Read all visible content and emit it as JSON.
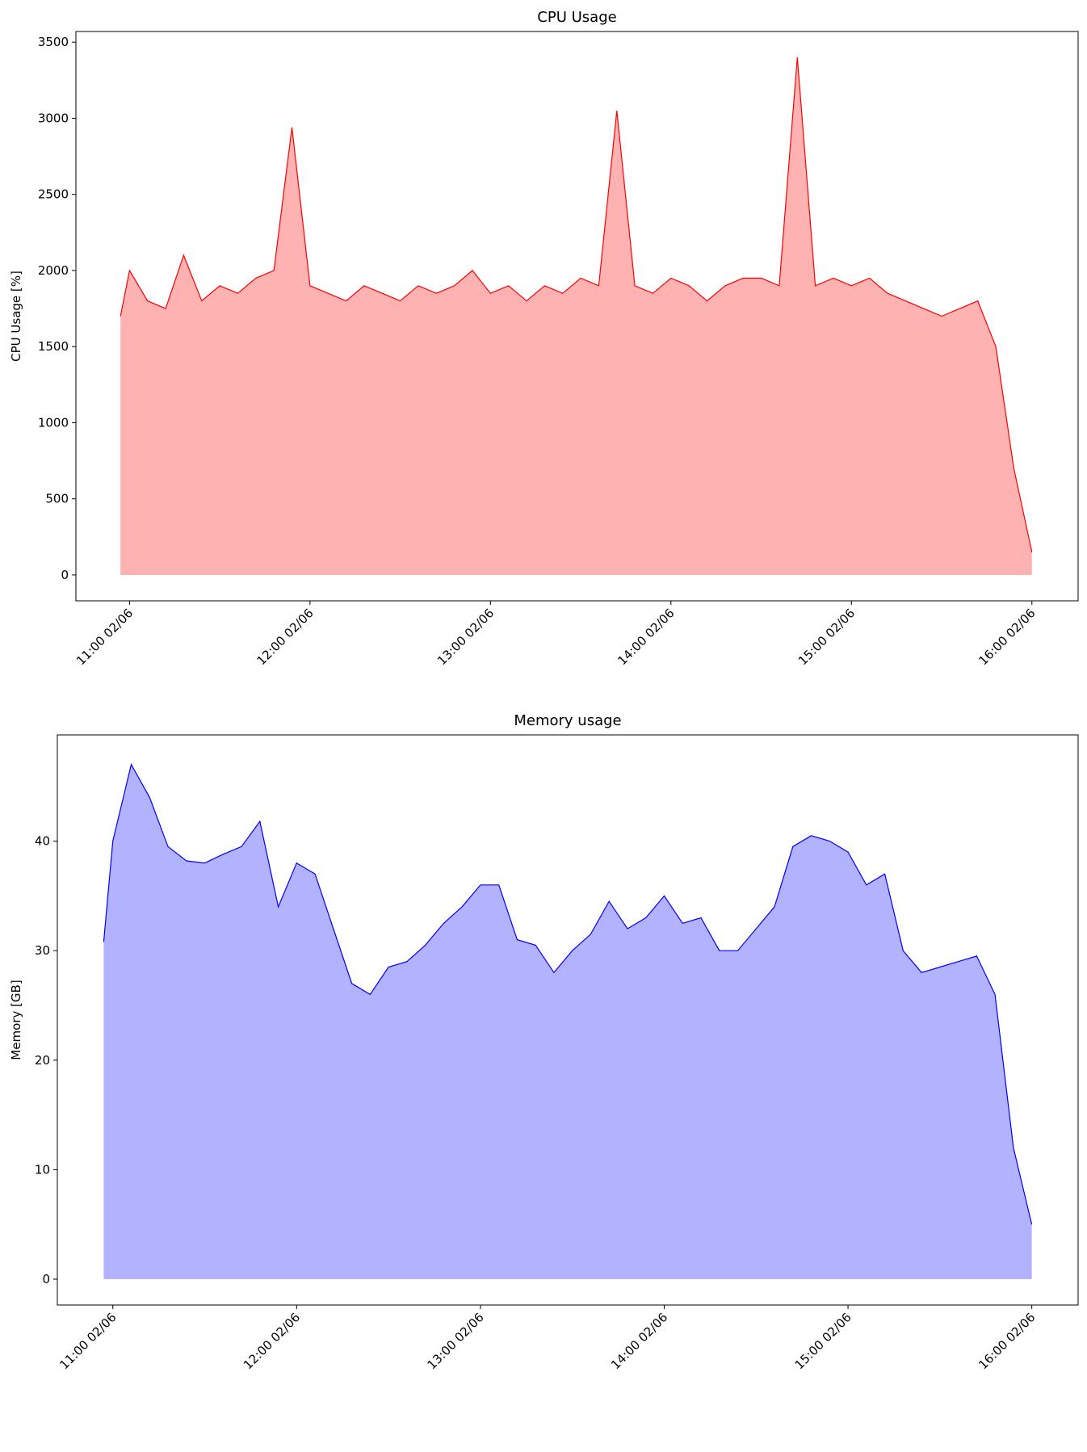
{
  "chart_data": [
    {
      "type": "area",
      "title": "CPU Usage",
      "y_label": "CPU Usage [%]",
      "color": "red",
      "x": [
        10.95,
        11.0,
        11.1,
        11.2,
        11.3,
        11.4,
        11.5,
        11.6,
        11.7,
        11.8,
        11.9,
        12.0,
        12.1,
        12.2,
        12.3,
        12.4,
        12.5,
        12.6,
        12.7,
        12.8,
        12.9,
        13.0,
        13.1,
        13.2,
        13.3,
        13.4,
        13.5,
        13.6,
        13.7,
        13.8,
        13.9,
        14.0,
        14.1,
        14.2,
        14.3,
        14.4,
        14.5,
        14.6,
        14.7,
        14.8,
        14.9,
        15.0,
        15.1,
        15.2,
        15.3,
        15.4,
        15.5,
        15.6,
        15.7,
        15.8,
        15.9,
        16.0
      ],
      "values": [
        1700,
        2000,
        1800,
        1750,
        2100,
        1800,
        1900,
        1850,
        1950,
        2000,
        2940,
        1900,
        1850,
        1800,
        1900,
        1850,
        1800,
        1900,
        1850,
        1900,
        2000,
        1850,
        1900,
        1800,
        1900,
        1850,
        1950,
        1900,
        3050,
        1900,
        1850,
        1950,
        1900,
        1800,
        1900,
        1950,
        1950,
        1900,
        3400,
        1900,
        1950,
        1900,
        1950,
        1850,
        1800,
        1750,
        1700,
        1750,
        1800,
        1500,
        700,
        150
      ],
      "xlim": [
        10.703,
        16.256
      ],
      "ylim": [
        -170,
        3570
      ],
      "yticks": [
        0,
        500,
        1000,
        1500,
        2000,
        2500,
        3000,
        3500
      ],
      "xticks": [
        {
          "value": 11,
          "label": "11:00 02/06"
        },
        {
          "value": 12,
          "label": "12:00 02/06"
        },
        {
          "value": 13,
          "label": "13:00 02/06"
        },
        {
          "value": 14,
          "label": "14:00 02/06"
        },
        {
          "value": 15,
          "label": "15:00 02/06"
        },
        {
          "value": 16,
          "label": "16:00 02/06"
        }
      ]
    },
    {
      "type": "area",
      "title": "Memory usage",
      "y_label": "Memory [GB]",
      "color": "blue",
      "x": [
        10.95,
        11.0,
        11.1,
        11.2,
        11.3,
        11.4,
        11.5,
        11.6,
        11.7,
        11.8,
        11.9,
        12.0,
        12.1,
        12.2,
        12.3,
        12.4,
        12.5,
        12.6,
        12.7,
        12.8,
        12.9,
        13.0,
        13.1,
        13.2,
        13.3,
        13.4,
        13.5,
        13.6,
        13.7,
        13.8,
        13.9,
        14.0,
        14.1,
        14.2,
        14.3,
        14.4,
        14.5,
        14.6,
        14.7,
        14.8,
        14.9,
        15.0,
        15.1,
        15.2,
        15.3,
        15.4,
        15.5,
        15.6,
        15.7,
        15.8,
        15.9,
        16.0
      ],
      "values": [
        30.8,
        40,
        47,
        44,
        39.5,
        38.2,
        38,
        38.8,
        39.5,
        41.8,
        34,
        38,
        37,
        32,
        27,
        26,
        28.5,
        29,
        30.5,
        32.5,
        34,
        36,
        36,
        31,
        30.5,
        28,
        30,
        31.5,
        34.5,
        32,
        33,
        35,
        32.5,
        33,
        30,
        30,
        32,
        34,
        39.5,
        40.5,
        40,
        39,
        36,
        37,
        30,
        28,
        28.5,
        29,
        29.5,
        26,
        12,
        5
      ],
      "xlim": [
        10.698,
        16.252
      ],
      "ylim": [
        -2.36,
        49.7
      ],
      "yticks": [
        0,
        10,
        20,
        30,
        40
      ],
      "xticks": [
        {
          "value": 11,
          "label": "11:00 02/06"
        },
        {
          "value": 12,
          "label": "12:00 02/06"
        },
        {
          "value": 13,
          "label": "13:00 02/06"
        },
        {
          "value": 14,
          "label": "14:00 02/06"
        },
        {
          "value": 15,
          "label": "15:00 02/06"
        },
        {
          "value": 16,
          "label": "16:00 02/06"
        }
      ]
    }
  ]
}
